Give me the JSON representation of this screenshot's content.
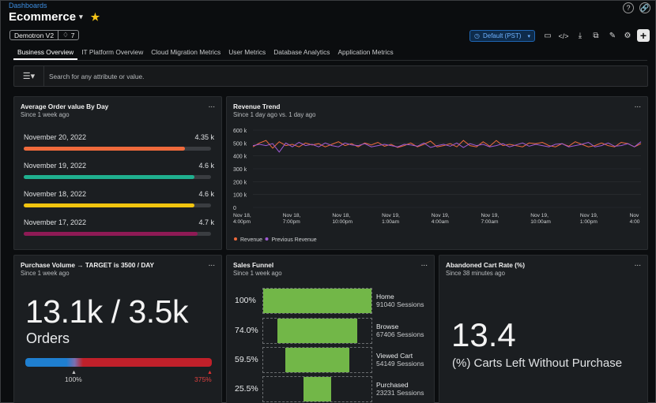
{
  "breadcrumb": "Dashboards",
  "title": "Ecommerce",
  "tags": {
    "account": "Demotron V2",
    "count": "7"
  },
  "toolbar": {
    "timezone": "Default (PST)"
  },
  "tabs": [
    "Business Overview",
    "IT Platform Overview",
    "Cloud Migration Metrics",
    "User Metrics",
    "Database Analytics",
    "Application Metrics"
  ],
  "search": {
    "placeholder": "Search for any attribute or value."
  },
  "panels": {
    "aov": {
      "title": "Average Order value By Day",
      "subtitle": "Since 1 week ago",
      "menu": "...",
      "rows": [
        {
          "label": "November 20, 2022",
          "value": "4.35 k",
          "fraction": 0.86,
          "color": "#ef6a3c"
        },
        {
          "label": "November 19, 2022",
          "value": "4.6 k",
          "fraction": 0.91,
          "color": "#1fb08f"
        },
        {
          "label": "November 18, 2022",
          "value": "4.6 k",
          "fraction": 0.91,
          "color": "#f1c40f"
        },
        {
          "label": "November 17, 2022",
          "value": "4.7 k",
          "fraction": 0.93,
          "color": "#8e1a55"
        }
      ]
    },
    "revenue": {
      "title": "Revenue Trend",
      "subtitle": "Since 1 day ago vs. 1 day ago",
      "menu": "..."
    },
    "volume": {
      "title": "Purchase Volume → TARGET is 3500 / DAY",
      "subtitle": "Since 1 week ago",
      "menu": "...",
      "value": "13.1k / 3.5k",
      "unit": "Orders",
      "marker_left": "100%",
      "marker_right": "375%"
    },
    "funnel": {
      "title": "Sales Funnel",
      "subtitle": "Since 1 week ago",
      "menu": "...",
      "steps": [
        {
          "pct": "100%",
          "name": "Home",
          "sessions": "91040 Sessions",
          "fraction": 1.0
        },
        {
          "pct": "74.0%",
          "name": "Browse",
          "sessions": "67406 Sessions",
          "fraction": 0.74
        },
        {
          "pct": "59.5%",
          "name": "Viewed Cart",
          "sessions": "54149 Sessions",
          "fraction": 0.595
        },
        {
          "pct": "25.5%",
          "name": "Purchased",
          "sessions": "23231 Sessions",
          "fraction": 0.255
        }
      ]
    },
    "abandoned": {
      "title": "Abandoned Cart Rate (%)",
      "subtitle": "Since 38 minutes ago",
      "menu": "...",
      "value": "13.4",
      "caption": "(%) Carts Left Without Purchase"
    }
  },
  "chart_data": {
    "type": "line",
    "title": "Revenue Trend",
    "ylim": [
      0,
      600000
    ],
    "yticks": [
      "600 k",
      "500 k",
      "400 k",
      "300 k",
      "200 k",
      "100 k",
      "0"
    ],
    "xticks": [
      "Nov 18,\n4:00pm",
      "Nov 18,\n7:00pm",
      "Nov 18,\n10:00pm",
      "Nov 19,\n1:00am",
      "Nov 19,\n4:00am",
      "Nov 19,\n7:00am",
      "Nov 19,\n10:00am",
      "Nov 19,\n1:00pm",
      "Nov\n4:00"
    ],
    "series": [
      {
        "name": "Revenue",
        "color": "#ef6a3c",
        "values": [
          470000,
          500000,
          520000,
          460000,
          510000,
          480000,
          490000,
          470000,
          500000,
          485000,
          495000,
          470000,
          490000,
          510000,
          480000,
          495000,
          470000,
          500000,
          485000,
          505000,
          475000,
          490000,
          465000,
          480000,
          500000,
          470000,
          490000,
          515000,
          470000,
          480000,
          495000,
          470000,
          520000,
          480000,
          470000,
          510000,
          475000,
          520000,
          480000,
          490000,
          480000,
          470000,
          500000,
          495000,
          505000,
          480000,
          470000,
          495000,
          475000,
          510000,
          490000,
          470000,
          480000,
          500000,
          480000,
          470000,
          505000,
          495000,
          470000,
          495000
        ]
      },
      {
        "name": "Previous Revenue",
        "color": "#a05bd6",
        "values": [
          480000,
          490000,
          480000,
          495000,
          430000,
          500000,
          470000,
          505000,
          480000,
          490000,
          470000,
          500000,
          480000,
          470000,
          500000,
          485000,
          480000,
          495000,
          470000,
          480000,
          490000,
          480000,
          470000,
          490000,
          485000,
          475000,
          500000,
          465000,
          480000,
          490000,
          475000,
          500000,
          465000,
          495000,
          480000,
          490000,
          470000,
          480000,
          495000,
          470000,
          485000,
          500000,
          475000,
          490000,
          480000,
          470000,
          490000,
          495000,
          470000,
          480000,
          490000,
          505000,
          470000,
          480000,
          500000,
          475000,
          480000,
          495000,
          470000,
          510000
        ]
      }
    ]
  },
  "colors": {
    "accent": "#1f66b3",
    "funnel": "#72b748"
  }
}
